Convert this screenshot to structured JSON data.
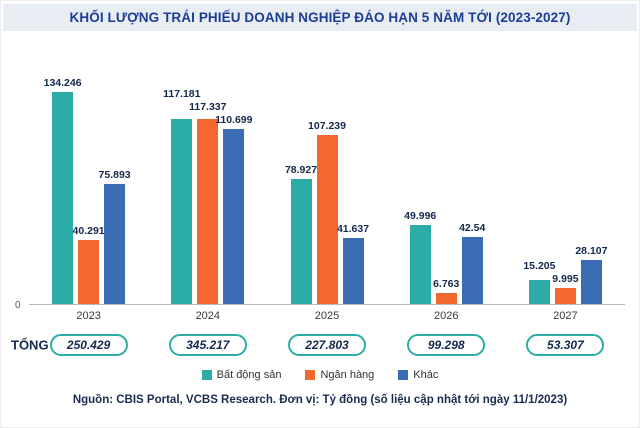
{
  "title": "KHỐI LƯỢNG TRÁI PHIẾU DOANH NGHIỆP ĐÁO HẠN 5 NĂM TỚI (2023-2027)",
  "source": "Nguồn: CBIS Portal, VCBS Research. Đơn vị: Tỷ đồng (số liệu cập nhật tới ngày 11/1/2023)",
  "totals_label": "TỔNG",
  "axis": {
    "zero_label": "0"
  },
  "colors": {
    "real_estate": "#2BACA6",
    "bank": "#F2682F",
    "other": "#3B6CB4",
    "title_text": "#1B3E94",
    "value_label": "#13294E",
    "title_bg": "#E8EDF4"
  },
  "chart_data": {
    "type": "bar",
    "title": "KHỐI LƯỢNG TRÁI PHIẾU DOANH NGHIỆP ĐÁO HẠN 5 NĂM TỚI (2023-2027)",
    "xlabel": "",
    "ylabel": "Tỷ đồng",
    "ylim": [
      0,
      140
    ],
    "grid": false,
    "legend_position": "bottom",
    "categories": [
      "2023",
      "2024",
      "2025",
      "2026",
      "2027"
    ],
    "series": [
      {
        "name": "Bất động sản",
        "color": "#2BACA6",
        "values": [
          134.246,
          117.181,
          78.927,
          49.996,
          15.205
        ],
        "labels": [
          "134.246",
          "117.181",
          "78.927",
          "49.996",
          "15.205"
        ]
      },
      {
        "name": "Ngân hàng",
        "color": "#F2682F",
        "values": [
          40.291,
          117.337,
          107.239,
          6.763,
          9.995
        ],
        "labels": [
          "40.291",
          "117.337",
          "107.239",
          "6.763",
          "9.995"
        ]
      },
      {
        "name": "Khác",
        "color": "#3B6CB4",
        "values": [
          75.893,
          110.699,
          41.637,
          42.54,
          28.107
        ],
        "labels": [
          "75.893",
          "110.699",
          "41.637",
          "42.54",
          "28.107"
        ]
      }
    ],
    "totals": [
      "250.429",
      "345.217",
      "227.803",
      "99.298",
      "53.307"
    ]
  }
}
